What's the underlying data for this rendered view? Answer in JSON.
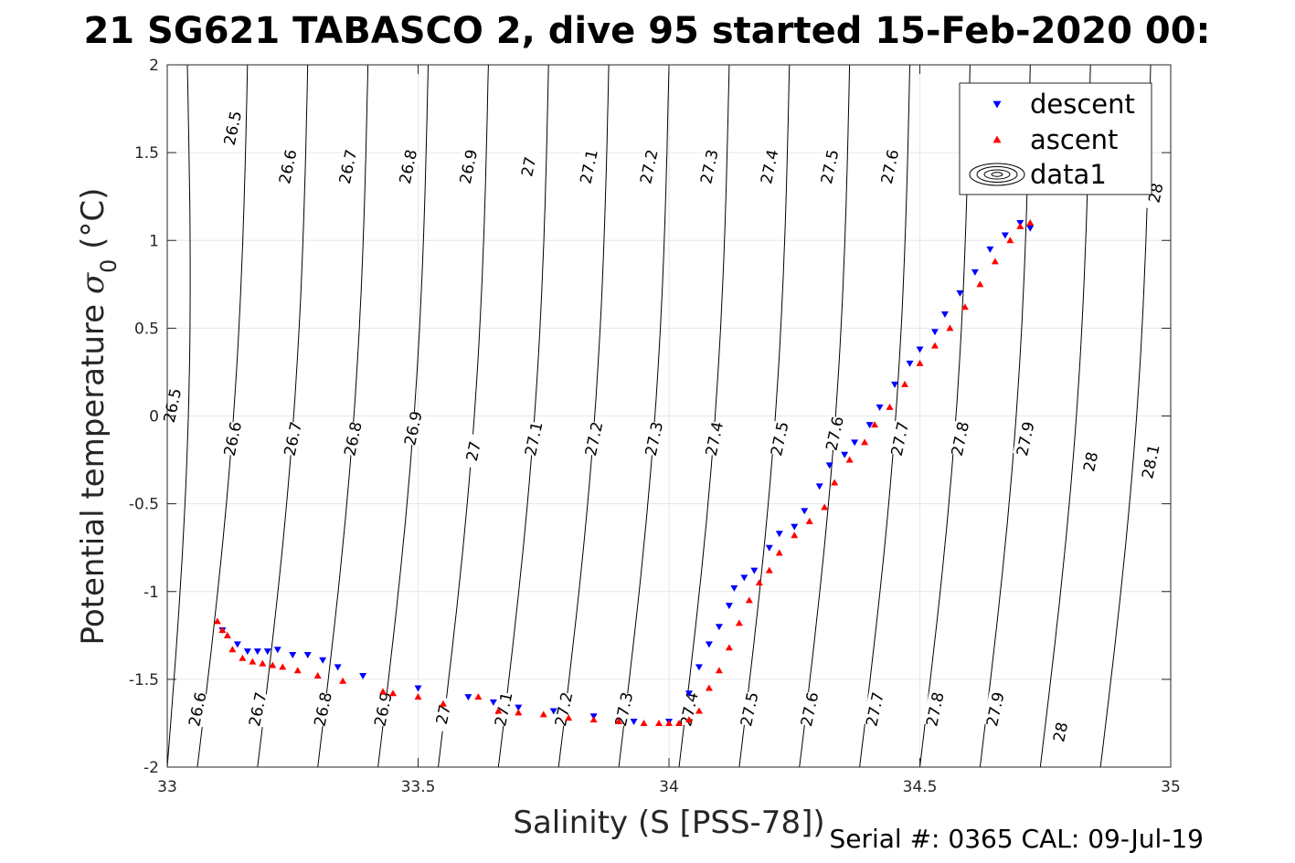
{
  "chart_data": {
    "type": "scatter",
    "title": "21 SG621 TABASCO 2, dive 95 started 15-Feb-2020 00:",
    "xlabel": "Salinity (S [PSS-78])",
    "ylabel_main": "Potential temperature",
    "ylabel_symbol": "σ",
    "ylabel_sub": "0",
    "ylabel_unit": "(°C)",
    "xlim": [
      33,
      35
    ],
    "ylim": [
      -2,
      2
    ],
    "x_ticks": [
      33,
      33.5,
      34,
      34.5,
      35
    ],
    "x_tick_labels": [
      "33",
      "33.5",
      "34",
      "34.5",
      "35"
    ],
    "y_ticks": [
      -2,
      -1.5,
      -1,
      -0.5,
      0,
      0.5,
      1,
      1.5,
      2
    ],
    "y_tick_labels": [
      "-2",
      "-1.5",
      "-1",
      "-0.5",
      "0",
      "0.5",
      "1",
      "1.5",
      "2"
    ],
    "grid": true,
    "legend_position": "top-right",
    "legend": [
      {
        "label": "descent",
        "marker": "triangle-down",
        "color": "#0000ff"
      },
      {
        "label": "ascent",
        "marker": "triangle-up",
        "color": "#ff0000"
      },
      {
        "label": "data1",
        "marker": "contour",
        "color": "#000000"
      }
    ],
    "density_contours": {
      "levels": [
        26.5,
        26.6,
        26.7,
        26.8,
        26.9,
        27,
        27.1,
        27.2,
        27.3,
        27.4,
        27.5,
        27.6,
        27.7,
        27.8,
        27.9,
        28,
        28.1
      ],
      "salinity_at_minus2": [
        33.0,
        33.06,
        33.18,
        33.3,
        33.42,
        33.54,
        33.66,
        33.78,
        33.9,
        34.02,
        34.14,
        34.26,
        34.38,
        34.5,
        34.62,
        34.74,
        34.86
      ],
      "salinity_at_plus2": [
        33.04,
        33.16,
        33.28,
        33.4,
        33.52,
        33.64,
        33.76,
        33.88,
        34.0,
        34.12,
        34.24,
        34.36,
        34.48,
        34.6,
        34.72,
        34.84,
        34.96
      ],
      "curvature": 0.022,
      "labels": [
        {
          "text": "26.5",
          "s": 33.13,
          "t": 1.64
        },
        {
          "text": "26.6",
          "s": 33.24,
          "t": 1.42
        },
        {
          "text": "26.7",
          "s": 33.36,
          "t": 1.42
        },
        {
          "text": "26.8",
          "s": 33.48,
          "t": 1.42
        },
        {
          "text": "26.9",
          "s": 33.6,
          "t": 1.42
        },
        {
          "text": "27",
          "s": 33.72,
          "t": 1.42
        },
        {
          "text": "27.1",
          "s": 33.84,
          "t": 1.42
        },
        {
          "text": "27.2",
          "s": 33.96,
          "t": 1.42
        },
        {
          "text": "27.3",
          "s": 34.08,
          "t": 1.42
        },
        {
          "text": "27.4",
          "s": 34.2,
          "t": 1.42
        },
        {
          "text": "27.5",
          "s": 34.32,
          "t": 1.42
        },
        {
          "text": "27.6",
          "s": 34.44,
          "t": 1.42
        },
        {
          "text": "28",
          "s": 34.97,
          "t": 1.27
        },
        {
          "text": "26.5",
          "s": 33.01,
          "t": 0.06
        },
        {
          "text": "26.6",
          "s": 33.13,
          "t": -0.13
        },
        {
          "text": "26.7",
          "s": 33.25,
          "t": -0.13
        },
        {
          "text": "26.8",
          "s": 33.37,
          "t": -0.13
        },
        {
          "text": "26.9",
          "s": 33.49,
          "t": -0.07
        },
        {
          "text": "27",
          "s": 33.61,
          "t": -0.2
        },
        {
          "text": "27.1",
          "s": 33.73,
          "t": -0.13
        },
        {
          "text": "27.2",
          "s": 33.85,
          "t": -0.13
        },
        {
          "text": "27.3",
          "s": 33.97,
          "t": -0.13
        },
        {
          "text": "27.4",
          "s": 34.09,
          "t": -0.13
        },
        {
          "text": "27.5",
          "s": 34.22,
          "t": -0.13
        },
        {
          "text": "27.6",
          "s": 34.33,
          "t": -0.1
        },
        {
          "text": "27.7",
          "s": 34.46,
          "t": -0.13
        },
        {
          "text": "27.8",
          "s": 34.58,
          "t": -0.13
        },
        {
          "text": "27.9",
          "s": 34.71,
          "t": -0.13
        },
        {
          "text": "28",
          "s": 34.84,
          "t": -0.26
        },
        {
          "text": "28.1",
          "s": 34.96,
          "t": -0.26
        },
        {
          "text": "26.6",
          "s": 33.06,
          "t": -1.67
        },
        {
          "text": "26.7",
          "s": 33.18,
          "t": -1.67
        },
        {
          "text": "26.8",
          "s": 33.31,
          "t": -1.67
        },
        {
          "text": "26.9",
          "s": 33.43,
          "t": -1.67
        },
        {
          "text": "27",
          "s": 33.55,
          "t": -1.7
        },
        {
          "text": "27.1",
          "s": 33.67,
          "t": -1.67
        },
        {
          "text": "27.2",
          "s": 33.79,
          "t": -1.67
        },
        {
          "text": "27.3",
          "s": 33.91,
          "t": -1.67
        },
        {
          "text": "27.4",
          "s": 34.04,
          "t": -1.67
        },
        {
          "text": "27.5",
          "s": 34.16,
          "t": -1.67
        },
        {
          "text": "27.6",
          "s": 34.28,
          "t": -1.67
        },
        {
          "text": "27.7",
          "s": 34.41,
          "t": -1.67
        },
        {
          "text": "27.8",
          "s": 34.53,
          "t": -1.67
        },
        {
          "text": "27.9",
          "s": 34.65,
          "t": -1.67
        },
        {
          "text": "28",
          "s": 34.78,
          "t": -1.8
        }
      ]
    },
    "series": [
      {
        "name": "descent",
        "marker": "triangle-down",
        "color": "#0000ff",
        "x": [
          33.11,
          33.14,
          33.16,
          33.18,
          33.2,
          33.22,
          33.25,
          33.28,
          33.31,
          33.34,
          33.39,
          33.5,
          33.6,
          33.65,
          33.7,
          33.77,
          33.85,
          33.93,
          34.0,
          34.04,
          34.06,
          34.08,
          34.1,
          34.12,
          34.13,
          34.15,
          34.17,
          34.2,
          34.22,
          34.25,
          34.27,
          34.3,
          34.32,
          34.35,
          34.37,
          34.4,
          34.42,
          34.45,
          34.48,
          34.5,
          34.53,
          34.55,
          34.58,
          34.61,
          34.64,
          34.67,
          34.7,
          34.72
        ],
        "y": [
          -1.22,
          -1.3,
          -1.34,
          -1.34,
          -1.34,
          -1.33,
          -1.36,
          -1.36,
          -1.39,
          -1.43,
          -1.48,
          -1.55,
          -1.6,
          -1.63,
          -1.66,
          -1.68,
          -1.71,
          -1.74,
          -1.74,
          -1.58,
          -1.43,
          -1.3,
          -1.2,
          -1.08,
          -0.98,
          -0.92,
          -0.88,
          -0.75,
          -0.67,
          -0.63,
          -0.54,
          -0.4,
          -0.28,
          -0.22,
          -0.15,
          -0.05,
          0.05,
          0.18,
          0.3,
          0.38,
          0.48,
          0.58,
          0.7,
          0.82,
          0.95,
          1.03,
          1.1,
          1.07
        ]
      },
      {
        "name": "ascent",
        "marker": "triangle-up",
        "color": "#ff0000",
        "x": [
          33.1,
          33.11,
          33.12,
          33.13,
          33.15,
          33.17,
          33.19,
          33.21,
          33.23,
          33.26,
          33.3,
          33.35,
          33.43,
          33.45,
          33.5,
          33.55,
          33.62,
          33.66,
          33.7,
          33.75,
          33.8,
          33.85,
          33.9,
          33.95,
          33.98,
          34.0,
          34.02,
          34.04,
          34.06,
          34.08,
          34.1,
          34.12,
          34.14,
          34.16,
          34.18,
          34.2,
          34.22,
          34.25,
          34.28,
          34.31,
          34.33,
          34.36,
          34.39,
          34.41,
          34.44,
          34.47,
          34.5,
          34.53,
          34.56,
          34.59,
          34.62,
          34.65,
          34.68,
          34.7,
          34.72
        ],
        "y": [
          -1.17,
          -1.22,
          -1.25,
          -1.33,
          -1.38,
          -1.4,
          -1.41,
          -1.42,
          -1.43,
          -1.45,
          -1.48,
          -1.51,
          -1.57,
          -1.58,
          -1.6,
          -1.64,
          -1.6,
          -1.68,
          -1.69,
          -1.7,
          -1.72,
          -1.73,
          -1.74,
          -1.75,
          -1.75,
          -1.75,
          -1.75,
          -1.73,
          -1.68,
          -1.55,
          -1.45,
          -1.32,
          -1.18,
          -1.05,
          -0.95,
          -0.88,
          -0.78,
          -0.68,
          -0.6,
          -0.52,
          -0.38,
          -0.25,
          -0.15,
          -0.05,
          0.05,
          0.18,
          0.3,
          0.4,
          0.5,
          0.62,
          0.75,
          0.88,
          1.0,
          1.08,
          1.1
        ]
      }
    ]
  },
  "footer": {
    "serial": "Serial #: 0365  CAL: 09-Jul-19"
  }
}
